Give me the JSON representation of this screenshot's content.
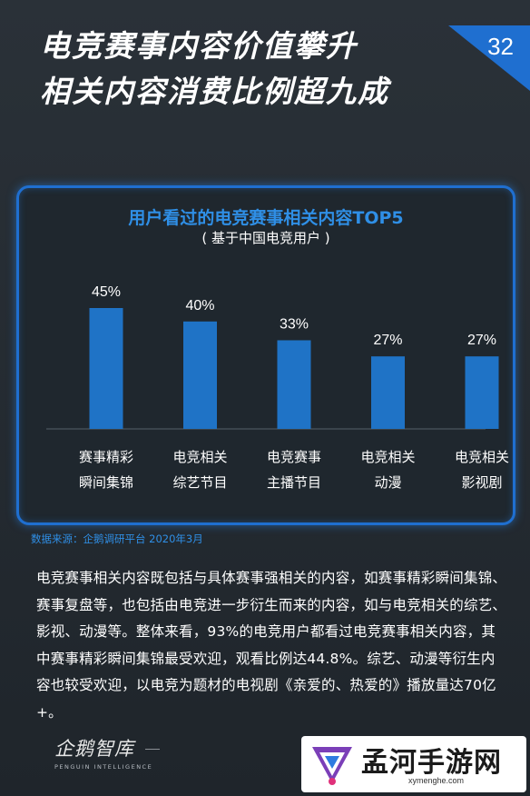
{
  "page": {
    "title_lines": [
      "电竞赛事内容价值攀升",
      "相关内容消费比例超九成"
    ],
    "page_number": "32"
  },
  "chart_data": {
    "type": "bar",
    "title": "用户看过的电竞赛事相关内容TOP5",
    "subtitle": "( 基于中国电竞用户 )",
    "categories": [
      [
        "赛事精彩",
        "瞬间集锦"
      ],
      [
        "电竞相关",
        "综艺节目"
      ],
      [
        "电竞赛事",
        "主播节目"
      ],
      [
        "电竞相关",
        "动漫"
      ],
      [
        "电竞相关",
        "影视剧"
      ]
    ],
    "values": [
      45,
      40,
      33,
      27,
      27
    ],
    "value_labels": [
      "45%",
      "40%",
      "33%",
      "27%",
      "27%"
    ],
    "ylim": [
      0,
      45
    ],
    "bar_color": "#1f73c6",
    "grid": false
  },
  "source": "数据来源：企鹅调研平台  2020年3月",
  "body_text": "电竞赛事相关内容既包括与具体赛事强相关的内容，如赛事精彩瞬间集锦、赛事复盘等，也包括由电竞进一步衍生而来的内容，如与电竞相关的综艺、影视、动漫等。整体来看，93%的电竞用户都看过电竞赛事相关内容，其中赛事精彩瞬间集锦最受欢迎，观看比例达44.8%。综艺、动漫等衍生内容也较受欢迎，以电竞为题材的电视剧《亲爱的、热爱的》播放量达70亿+。",
  "footer": {
    "brand": "企鹅智库",
    "brand_en": "PENGUIN INTELLIGENCE"
  },
  "watermark": {
    "name": "孟河手游网",
    "url": "xymenghe.com"
  },
  "colors": {
    "accent_blue": "#2f8fe6",
    "border_blue": "#1f6fd0",
    "background": "#252c33"
  }
}
